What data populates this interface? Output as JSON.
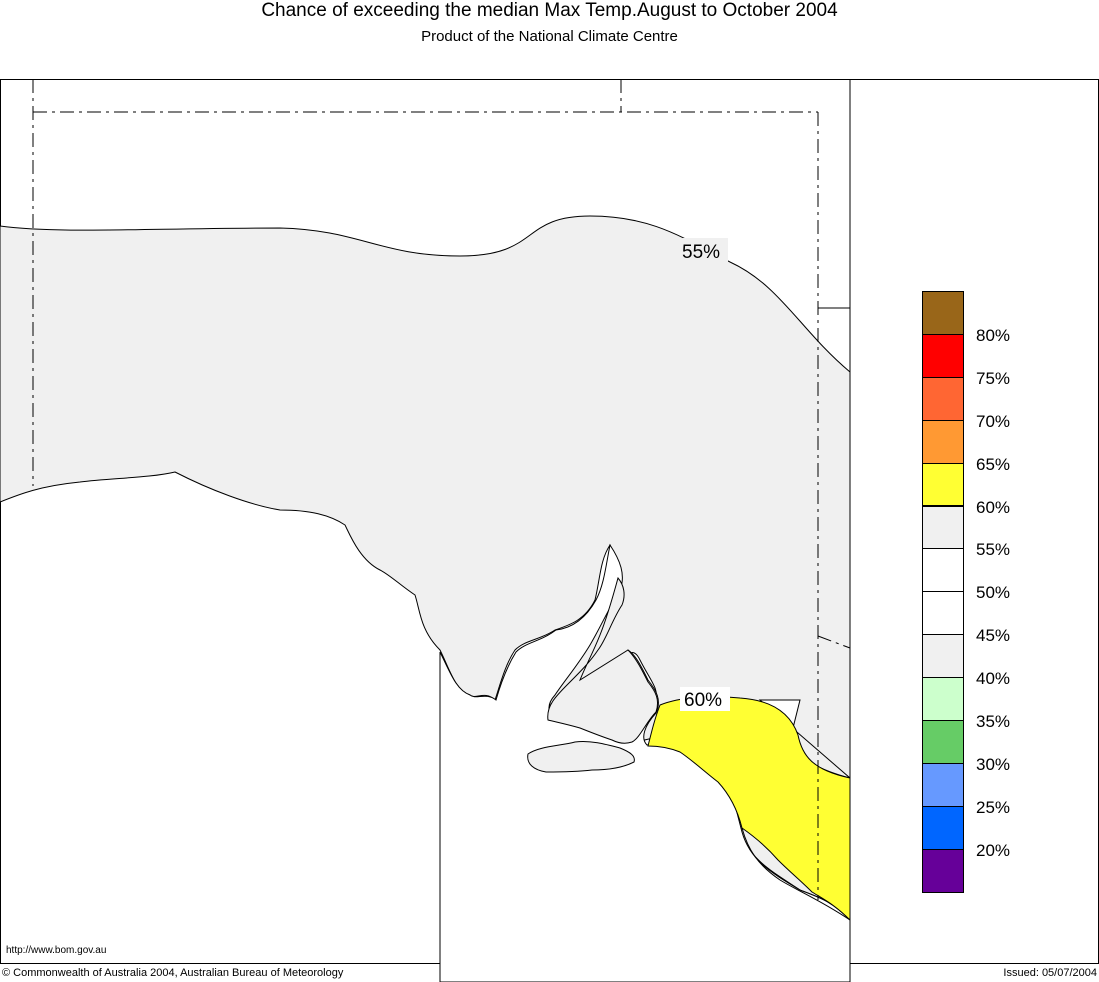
{
  "header": {
    "title": "Chance of exceeding the median Max Temp.August to October 2004",
    "subtitle": "Product of the National Climate Centre"
  },
  "map": {
    "contours": [
      {
        "label": "55%",
        "fill": "#f0f0f0"
      },
      {
        "label": "60%",
        "fill": "#ffff33"
      }
    ]
  },
  "legend": {
    "colors": [
      "#996619",
      "#ff0000",
      "#ff6633",
      "#ff9933",
      "#ffff33",
      "#f0f0f0",
      "#ffffff",
      "#ffffff",
      "#f0f0f0",
      "#ccffcc",
      "#66cc66",
      "#6699ff",
      "#0066ff",
      "#660099"
    ],
    "labels": [
      "80%",
      "75%",
      "70%",
      "65%",
      "60%",
      "55%",
      "50%",
      "45%",
      "40%",
      "35%",
      "30%",
      "25%",
      "20%"
    ]
  },
  "footer": {
    "url": "http://www.bom.gov.au",
    "copyright": "© Commonwealth of Australia 2004, Australian Bureau of Meteorology",
    "issued": "Issued: 05/07/2004"
  }
}
